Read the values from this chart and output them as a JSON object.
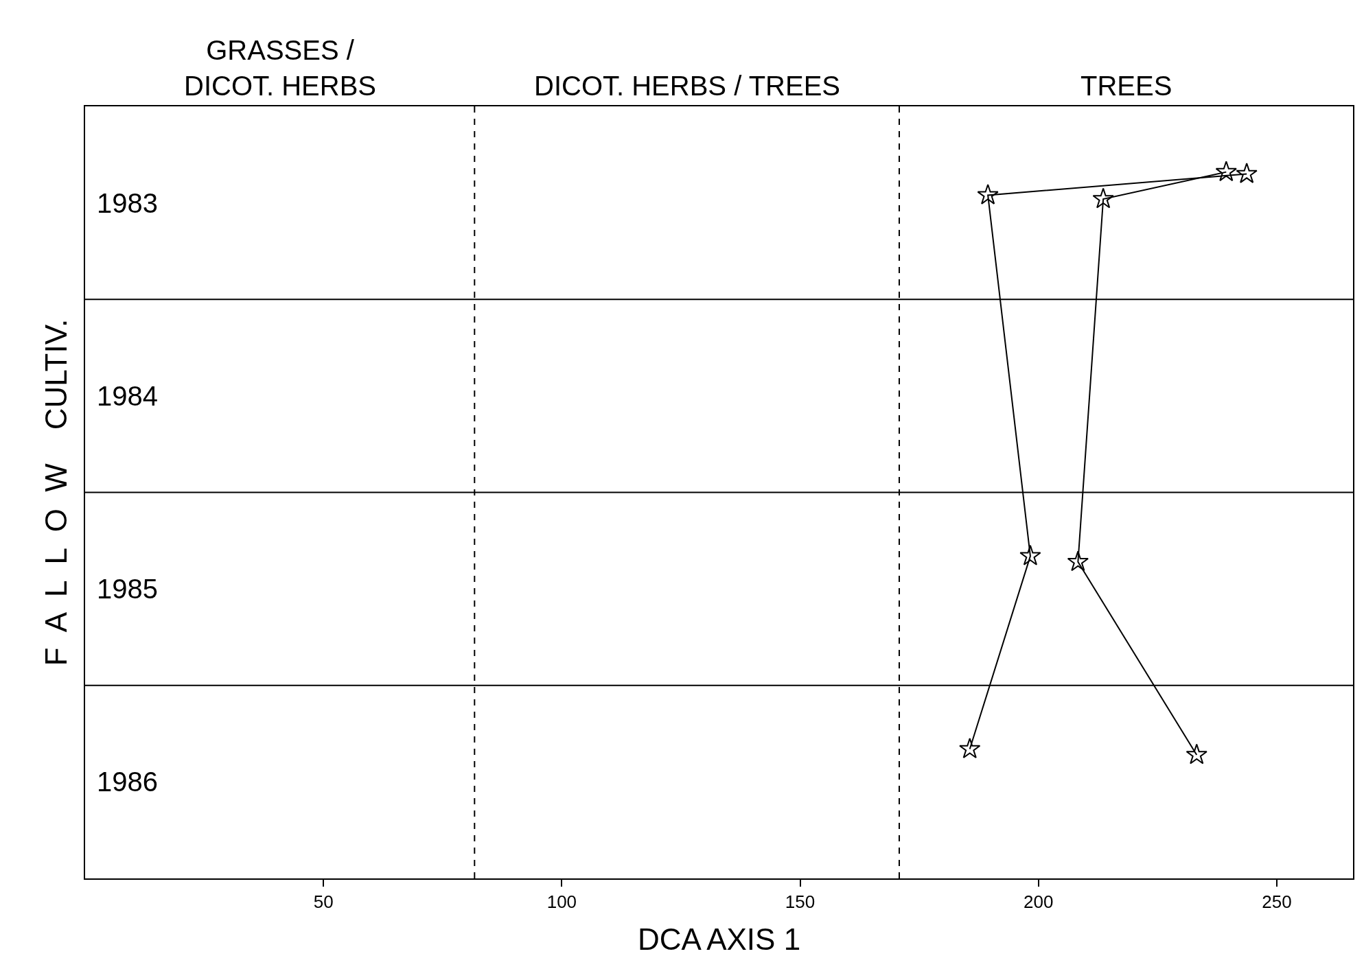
{
  "chart_data": {
    "type": "line",
    "xlabel": "DCA AXIS 1",
    "ylabel": "F  A  L  L  O  W    CULTIV.",
    "annotations": [
      "GRASSES /\nDICOT. HERBS",
      "DICOT. HERBS / TREES",
      "TREES"
    ],
    "series": [
      {
        "color": "#000000",
        "x": [
          185.6,
          198.3,
          189.4,
          243.7
        ],
        "values": [
          1985.83,
          1984.83,
          1982.96,
          1982.85
        ]
      },
      {
        "color": "#000000",
        "x": [
          233.2,
          208.3,
          213.6,
          239.4
        ],
        "values": [
          1985.86,
          1984.86,
          1982.98,
          1982.84
        ]
      }
    ],
    "xlim": [
      0,
      266
    ],
    "xticks": [
      50,
      100,
      150,
      200,
      250
    ],
    "ylim": [
      1986.5,
      1982.5
    ],
    "yticks": [
      1983,
      1984,
      1985,
      1986
    ],
    "ref_lines": [
      {
        "axis": "x",
        "value": 81.7,
        "line_style": "dashed",
        "color": "#000000"
      },
      {
        "axis": "x",
        "value": 170.8,
        "line_style": "dashed",
        "color": "#000000"
      },
      {
        "axis": "y",
        "value": 1983.5,
        "line_style": "solid",
        "color": "#000000"
      },
      {
        "axis": "y",
        "value": 1984.5,
        "line_style": "solid",
        "color": "#000000"
      },
      {
        "axis": "y",
        "value": 1985.5,
        "line_style": "solid",
        "color": "#000000"
      }
    ],
    "grid": false,
    "marker": "star",
    "line_style": "solid"
  }
}
